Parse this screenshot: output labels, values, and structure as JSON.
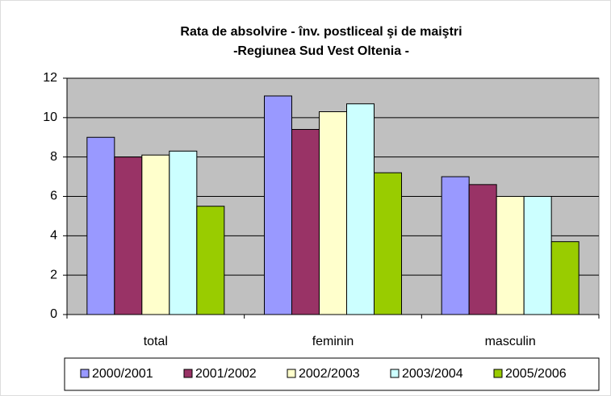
{
  "chart_data": {
    "type": "bar",
    "title": "Rata de absolvire - înv. postliceal şi de maiştri",
    "subtitle": "-Regiunea Sud Vest Oltenia -",
    "categories": [
      "total",
      "feminin",
      "masculin"
    ],
    "series": [
      {
        "name": "2000/2001",
        "color": "#9999ff",
        "values": [
          9.0,
          11.1,
          7.0
        ]
      },
      {
        "name": "2001/2002",
        "color": "#993366",
        "values": [
          8.0,
          9.4,
          6.6
        ]
      },
      {
        "name": "2002/2003",
        "color": "#ffffcc",
        "values": [
          8.1,
          10.3,
          6.0
        ]
      },
      {
        "name": "2003/2004",
        "color": "#ccffff",
        "values": [
          8.3,
          10.7,
          6.0
        ]
      },
      {
        "name": "2005/2006",
        "color": "#99cc00",
        "values": [
          5.5,
          7.2,
          3.7
        ]
      }
    ],
    "ylim": [
      0,
      12
    ],
    "yticks": [
      0,
      2,
      4,
      6,
      8,
      10,
      12
    ],
    "grid": true,
    "legend": "bottom"
  }
}
